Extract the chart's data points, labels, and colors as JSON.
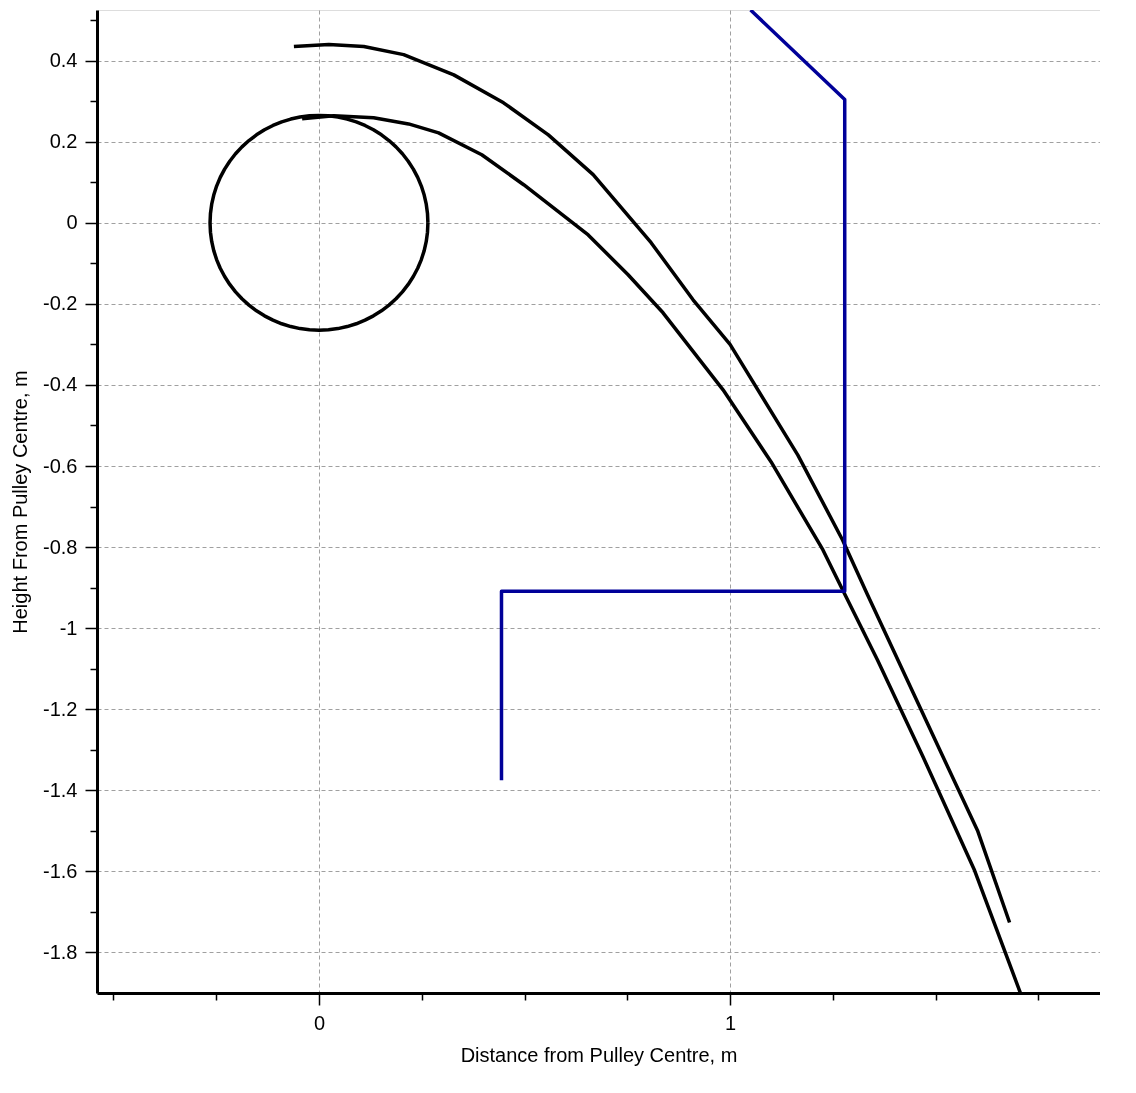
{
  "chart_data": {
    "type": "line",
    "xlabel": "Distance from Pulley Centre, m",
    "ylabel": "Height From Pulley Centre, m",
    "xlim": [
      -0.54,
      1.9
    ],
    "ylim": [
      -1.9,
      0.525
    ],
    "xticks": [
      {
        "value": -0.5,
        "label": null
      },
      {
        "value": -0.25,
        "label": null
      },
      0,
      {
        "value": 0.25,
        "label": null
      },
      {
        "value": 0.5,
        "label": null
      },
      {
        "value": 0.75,
        "label": null
      },
      1,
      {
        "value": 1.25,
        "label": null
      },
      {
        "value": 1.5,
        "label": null
      },
      {
        "value": 1.75,
        "label": null
      }
    ],
    "yticks": [
      -1.8,
      {
        "value": -1.7,
        "label": null
      },
      -1.6,
      {
        "value": -1.5,
        "label": null
      },
      -1.4,
      {
        "value": -1.3,
        "label": null
      },
      -1.2,
      {
        "value": -1.1,
        "label": null
      },
      -1,
      {
        "value": -0.9,
        "label": null
      },
      -0.8,
      {
        "value": -0.7,
        "label": null
      },
      -0.6,
      {
        "value": -0.5,
        "label": null
      },
      -0.4,
      {
        "value": -0.3,
        "label": null
      },
      -0.2,
      {
        "value": -0.1,
        "label": null
      },
      0,
      {
        "value": 0.1,
        "label": null
      },
      0.2,
      {
        "value": 0.3,
        "label": null
      },
      0.4,
      {
        "value": 0.5,
        "label": null
      }
    ],
    "grid": true,
    "legend": false,
    "marker": "none",
    "line_style": "solid",
    "series": [
      {
        "color": "#000000",
        "x": [
          -0.061,
          0.024,
          0.109,
          0.206,
          0.328,
          0.449,
          0.558,
          0.667,
          0.808,
          0.91,
          1.0,
          1.165,
          1.274,
          1.335,
          1.505,
          1.602,
          1.68
        ],
        "values": [
          0.435,
          0.44,
          0.435,
          0.415,
          0.365,
          0.296,
          0.217,
          0.119,
          -0.049,
          -0.19,
          -0.3,
          -0.573,
          -0.783,
          -0.919,
          -1.289,
          -1.499,
          -1.726
        ]
      },
      {
        "color": "#000000",
        "x": [
          -0.041,
          0.036,
          0.133,
          0.218,
          0.291,
          0.396,
          0.498,
          0.655,
          0.752,
          0.837,
          0.983,
          1.1,
          1.226,
          1.274,
          1.359,
          1.468,
          1.595,
          1.706
        ],
        "values": [
          0.257,
          0.264,
          0.259,
          0.244,
          0.222,
          0.168,
          0.094,
          -0.03,
          -0.128,
          -0.222,
          -0.412,
          -0.59,
          -0.807,
          -0.906,
          -1.079,
          -1.314,
          -1.598,
          -1.899
        ]
      },
      {
        "color": "#000099",
        "x": [
          1.05,
          1.279,
          1.279,
          0.444,
          0.444
        ],
        "values": [
          0.525,
          0.304,
          -0.909,
          -0.909,
          -1.375
        ]
      }
    ]
  }
}
